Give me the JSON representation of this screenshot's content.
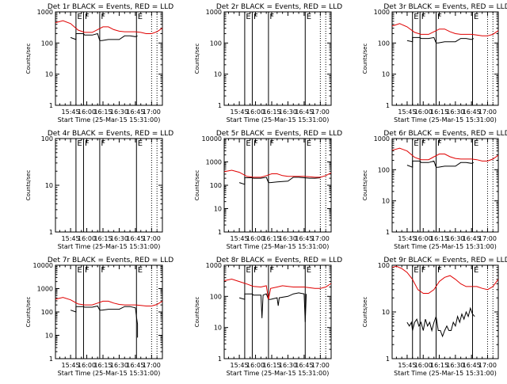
{
  "figure": {
    "xlabel": "Start Time (25-Mar-15 15:31:00)",
    "ylabel": "Counts/sec",
    "x_ticks": [
      "15:45",
      "16:00",
      "16:15",
      "16:30",
      "16:45",
      "17:00"
    ],
    "marker_labels": [
      "E",
      "F",
      "F",
      "E"
    ],
    "colors": {
      "events": "#000000",
      "lld": "#e00000",
      "axis": "#000000"
    }
  },
  "chart_data": [
    {
      "type": "line",
      "title": "Det 1r BLACK = Events, RED = LLD",
      "yscale": "log",
      "ylim": [
        1,
        1000
      ],
      "y_ticks": [
        "1",
        "10",
        "100",
        "1000"
      ],
      "xlim": [
        "15:31",
        "17:10"
      ],
      "series": [
        {
          "name": "Events",
          "color": "#000000",
          "x": [
            "15:45",
            "15:50",
            "15:50",
            "15:57",
            "15:58",
            "16:05",
            "16:10",
            "16:12",
            "16:14",
            "16:20",
            "16:30",
            "16:35",
            "16:40",
            "16:45",
            "16:47"
          ],
          "y": [
            150,
            130,
            200,
            200,
            180,
            180,
            200,
            120,
            120,
            130,
            130,
            170,
            170,
            160,
            170
          ]
        },
        {
          "name": "LLD",
          "color": "#e00000",
          "x": [
            "15:31",
            "15:38",
            "15:45",
            "15:52",
            "15:58",
            "16:05",
            "16:10",
            "16:15",
            "16:20",
            "16:25",
            "16:30",
            "16:35",
            "16:40",
            "16:45",
            "16:50",
            "16:55",
            "17:00",
            "17:05",
            "17:10"
          ],
          "y": [
            450,
            520,
            420,
            260,
            220,
            220,
            270,
            330,
            330,
            270,
            240,
            230,
            230,
            230,
            220,
            200,
            200,
            230,
            300
          ]
        }
      ]
    },
    {
      "type": "line",
      "title": "Det 2r BLACK = Events, RED = LLD",
      "yscale": "log",
      "ylim": [
        1,
        1000
      ],
      "y_ticks": [
        "1",
        "10",
        "100",
        "1000"
      ],
      "xlim": [
        "15:31",
        "17:10"
      ],
      "series": []
    },
    {
      "type": "line",
      "title": "Det 3r BLACK = Events, RED = LLD",
      "yscale": "log",
      "ylim": [
        1,
        1000
      ],
      "y_ticks": [
        "1",
        "10",
        "100",
        "1000"
      ],
      "xlim": [
        "15:31",
        "17:10"
      ],
      "series": [
        {
          "name": "Events",
          "color": "#000000",
          "x": [
            "15:45",
            "15:50",
            "15:50",
            "15:57",
            "15:58",
            "16:05",
            "16:10",
            "16:12",
            "16:14",
            "16:20",
            "16:30",
            "16:35",
            "16:40",
            "16:45",
            "16:47"
          ],
          "y": [
            120,
            110,
            150,
            150,
            140,
            140,
            150,
            100,
            100,
            110,
            110,
            140,
            140,
            130,
            140
          ]
        },
        {
          "name": "LLD",
          "color": "#e00000",
          "x": [
            "15:31",
            "15:38",
            "15:45",
            "15:52",
            "15:58",
            "16:05",
            "16:10",
            "16:15",
            "16:20",
            "16:25",
            "16:30",
            "16:35",
            "16:40",
            "16:45",
            "16:50",
            "16:55",
            "17:00",
            "17:05",
            "17:10"
          ],
          "y": [
            350,
            420,
            330,
            220,
            190,
            190,
            230,
            280,
            280,
            230,
            200,
            190,
            190,
            190,
            180,
            170,
            170,
            190,
            250
          ]
        }
      ]
    },
    {
      "type": "line",
      "title": "Det 4r BLACK = Events, RED = LLD",
      "yscale": "log",
      "ylim": [
        1,
        100
      ],
      "y_ticks": [
        "1",
        "10",
        "100"
      ],
      "xlim": [
        "15:31",
        "17:10"
      ],
      "series": []
    },
    {
      "type": "line",
      "title": "Det 5r BLACK = Events, RED = LLD",
      "yscale": "log",
      "ylim": [
        1,
        10000
      ],
      "y_ticks": [
        "1",
        "10",
        "100",
        "1000",
        "10000"
      ],
      "xlim": [
        "15:31",
        "17:10"
      ],
      "series": [
        {
          "name": "Events",
          "color": "#000000",
          "x": [
            "15:45",
            "15:50",
            "15:50",
            "15:57",
            "15:58",
            "16:05",
            "16:10",
            "16:12",
            "16:14",
            "16:20",
            "16:30",
            "16:35",
            "16:40",
            "16:45",
            "16:50",
            "16:55",
            "17:00"
          ],
          "y": [
            130,
            110,
            210,
            210,
            200,
            200,
            220,
            130,
            130,
            140,
            150,
            220,
            220,
            210,
            200,
            200,
            210
          ]
        },
        {
          "name": "LLD",
          "color": "#e00000",
          "x": [
            "15:31",
            "15:38",
            "15:45",
            "15:52",
            "15:58",
            "16:05",
            "16:10",
            "16:15",
            "16:20",
            "16:25",
            "16:30",
            "16:35",
            "16:40",
            "16:45",
            "16:50",
            "16:55",
            "17:00",
            "17:05",
            "17:10"
          ],
          "y": [
            380,
            440,
            360,
            240,
            220,
            220,
            260,
            310,
            310,
            260,
            240,
            240,
            240,
            240,
            230,
            220,
            220,
            260,
            340
          ]
        }
      ]
    },
    {
      "type": "line",
      "title": "Det 6r BLACK = Events, RED = LLD",
      "yscale": "log",
      "ylim": [
        1,
        1000
      ],
      "y_ticks": [
        "1",
        "10",
        "100",
        "1000"
      ],
      "xlim": [
        "15:31",
        "17:10"
      ],
      "series": [
        {
          "name": "Events",
          "color": "#000000",
          "x": [
            "15:45",
            "15:50",
            "15:50",
            "15:57",
            "15:58",
            "16:05",
            "16:10",
            "16:12",
            "16:14",
            "16:20",
            "16:30",
            "16:35",
            "16:40",
            "16:45",
            "16:47"
          ],
          "y": [
            140,
            120,
            190,
            190,
            170,
            170,
            190,
            120,
            120,
            130,
            130,
            170,
            170,
            160,
            170
          ]
        },
        {
          "name": "LLD",
          "color": "#e00000",
          "x": [
            "15:31",
            "15:38",
            "15:45",
            "15:52",
            "15:58",
            "16:05",
            "16:10",
            "16:15",
            "16:20",
            "16:25",
            "16:30",
            "16:35",
            "16:40",
            "16:45",
            "16:50",
            "16:55",
            "17:00",
            "17:05",
            "17:10"
          ],
          "y": [
            420,
            490,
            400,
            250,
            210,
            210,
            260,
            320,
            320,
            260,
            230,
            220,
            220,
            220,
            210,
            190,
            190,
            220,
            290
          ]
        }
      ]
    },
    {
      "type": "line",
      "title": "Det 7r BLACK = Events, RED = LLD",
      "yscale": "log",
      "ylim": [
        1,
        10000
      ],
      "y_ticks": [
        "1",
        "10",
        "100",
        "1000",
        "10000"
      ],
      "xlim": [
        "15:31",
        "17:10"
      ],
      "series": [
        {
          "name": "Events",
          "color": "#000000",
          "x": [
            "15:45",
            "15:50",
            "15:50",
            "15:57",
            "15:58",
            "16:05",
            "16:10",
            "16:12",
            "16:14",
            "16:20",
            "16:30",
            "16:35",
            "16:40",
            "16:45",
            "16:46",
            "16:47",
            "16:47"
          ],
          "y": [
            120,
            100,
            170,
            170,
            160,
            160,
            180,
            120,
            120,
            130,
            130,
            170,
            170,
            150,
            60,
            30,
            8
          ]
        },
        {
          "name": "LLD",
          "color": "#e00000",
          "x": [
            "15:31",
            "15:38",
            "15:45",
            "15:52",
            "15:58",
            "16:05",
            "16:10",
            "16:15",
            "16:20",
            "16:25",
            "16:30",
            "16:35",
            "16:40",
            "16:45",
            "16:50",
            "16:55",
            "17:00",
            "17:05",
            "17:10"
          ],
          "y": [
            350,
            420,
            330,
            220,
            200,
            200,
            240,
            290,
            290,
            240,
            210,
            200,
            200,
            200,
            190,
            180,
            180,
            210,
            290
          ]
        }
      ]
    },
    {
      "type": "line",
      "title": "Det 8r BLACK = Events, RED = LLD",
      "yscale": "log",
      "ylim": [
        1,
        1000
      ],
      "y_ticks": [
        "1",
        "10",
        "100",
        "1000"
      ],
      "xlim": [
        "15:31",
        "17:10"
      ],
      "series": [
        {
          "name": "Events",
          "color": "#000000",
          "x": [
            "15:45",
            "15:50",
            "15:50",
            "15:57",
            "15:58",
            "16:05",
            "16:06",
            "16:07",
            "16:10",
            "16:12",
            "16:14",
            "16:20",
            "16:21",
            "16:22",
            "16:30",
            "16:35",
            "16:40",
            "16:45",
            "16:46",
            "16:47"
          ],
          "y": [
            90,
            80,
            120,
            120,
            110,
            110,
            20,
            110,
            120,
            80,
            80,
            90,
            50,
            90,
            100,
            120,
            130,
            120,
            15,
            120
          ]
        },
        {
          "name": "LLD",
          "color": "#e00000",
          "x": [
            "15:31",
            "15:38",
            "15:45",
            "15:52",
            "15:58",
            "16:05",
            "16:10",
            "16:12",
            "16:14",
            "16:20",
            "16:25",
            "16:30",
            "16:35",
            "16:40",
            "16:45",
            "16:50",
            "16:55",
            "17:00",
            "17:05",
            "17:10"
          ],
          "y": [
            320,
            360,
            300,
            250,
            210,
            200,
            220,
            80,
            180,
            200,
            220,
            210,
            200,
            200,
            200,
            190,
            180,
            180,
            200,
            260
          ]
        }
      ]
    },
    {
      "type": "line",
      "title": "Det 9r BLACK = Events, RED = LLD",
      "yscale": "log",
      "ylim": [
        1,
        100
      ],
      "y_ticks": [
        "1",
        "10",
        "100"
      ],
      "xlim": [
        "15:31",
        "17:10"
      ],
      "series": [
        {
          "name": "Events",
          "color": "#000000",
          "x": [
            "15:45",
            "15:47",
            "15:49",
            "15:50",
            "15:52",
            "15:54",
            "15:56",
            "15:58",
            "16:00",
            "16:02",
            "16:04",
            "16:06",
            "16:08",
            "16:10",
            "16:12",
            "16:14",
            "16:16",
            "16:18",
            "16:20",
            "16:22",
            "16:24",
            "16:26",
            "16:28",
            "16:30",
            "16:32",
            "16:34",
            "16:36",
            "16:38",
            "16:40",
            "16:42",
            "16:44",
            "16:46",
            "16:48"
          ],
          "y": [
            6,
            5,
            6,
            4,
            6,
            7,
            5,
            6,
            4,
            7,
            5,
            6,
            4,
            6,
            8,
            4,
            4,
            3,
            4,
            5,
            4,
            4,
            6,
            5,
            8,
            6,
            9,
            7,
            10,
            8,
            12,
            9,
            8
          ]
        },
        {
          "name": "LLD",
          "color": "#e00000",
          "x": [
            "15:31",
            "15:35",
            "15:40",
            "15:45",
            "15:50",
            "15:55",
            "16:00",
            "16:05",
            "16:10",
            "16:15",
            "16:20",
            "16:25",
            "16:30",
            "16:35",
            "16:40",
            "16:45",
            "16:50",
            "16:55",
            "17:00",
            "17:05",
            "17:10"
          ],
          "y": [
            90,
            95,
            85,
            70,
            50,
            30,
            25,
            25,
            30,
            45,
            55,
            60,
            50,
            40,
            35,
            35,
            35,
            32,
            30,
            35,
            50
          ]
        }
      ]
    }
  ]
}
